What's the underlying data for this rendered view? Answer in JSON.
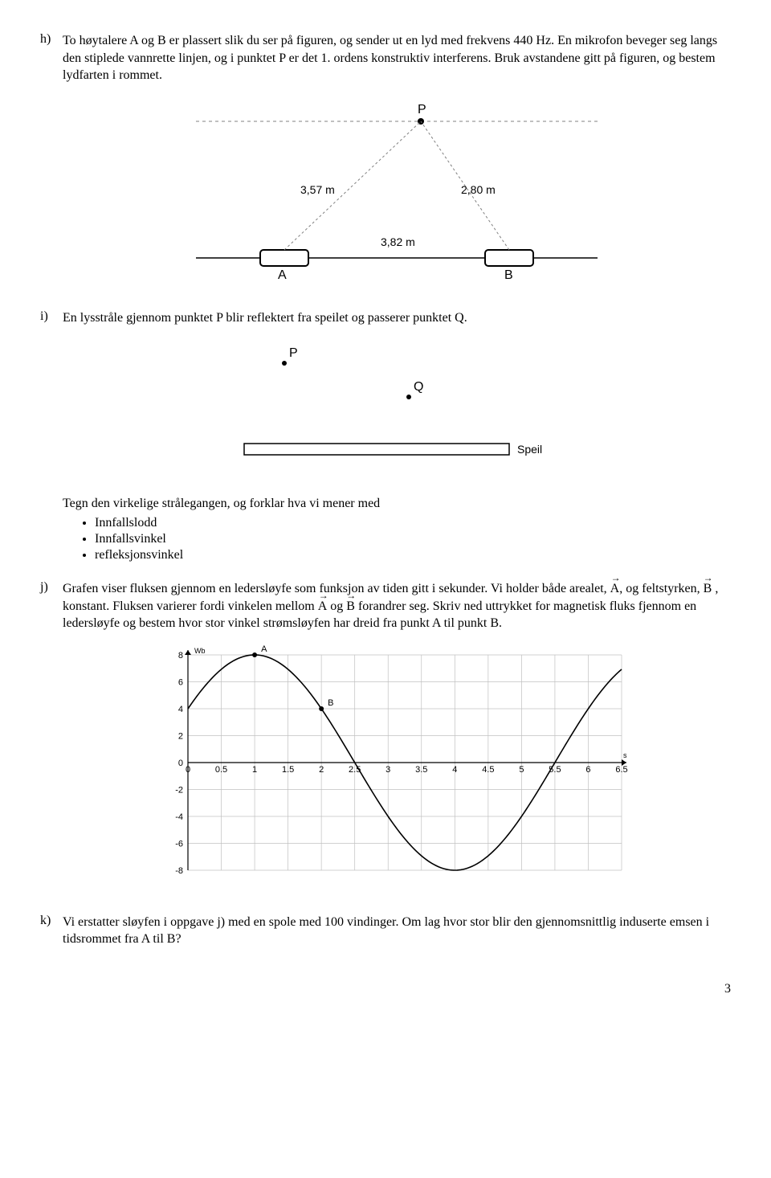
{
  "h": {
    "label": "h)",
    "text": "To høytalere A og B er plassert slik du ser på figuren, og sender ut en lyd med frekvens 440 Hz. En mikrofon beveger seg langs den stiplede vannrette linjen, og i punktet P er det 1. ordens konstruktiv interferens. Bruk avstandene gitt på figuren, og bestem lydfarten i rommet.",
    "figure": {
      "P": "P",
      "A": "A",
      "B": "B",
      "AP": "3,57 m",
      "BP": "2,80 m",
      "AB": "3,82 m",
      "line_color": "#000000",
      "dash_color": "#808080",
      "speaker_fill": "#ffffff",
      "speaker_stroke": "#000000"
    }
  },
  "i": {
    "label": "i)",
    "text": "En lysstråle gjennom punktet P blir reflektert fra speilet og passerer punktet Q.",
    "figure": {
      "P": "P",
      "Q": "Q",
      "mirror_label": "Speil",
      "mirror_fill": "#ffffff",
      "mirror_stroke": "#000000"
    },
    "after_text": "Tegn den virkelige strålegangen, og forklar hva vi mener med",
    "bullets": [
      "Innfallslodd",
      "Innfallsvinkel",
      "refleksjonsvinkel"
    ]
  },
  "j": {
    "label": "j)",
    "text_before": "Grafen viser fluksen gjennom en ledersløyfe som funksjon av tiden gitt i sekunder. Vi holder både arealet, ",
    "vecA": "A",
    "mid1": ", og feltstyrken, ",
    "vecB": "B",
    "mid2": " , konstant. Fluksen varierer fordi vinkelen mellom ",
    "vecA2": "A",
    "mid3": " og ",
    "vecB2": "B",
    "text_after": " forandrer seg. Skriv ned uttrykket for magnetisk fluks fjennom en ledersløyfe og bestem hvor stor vinkel strømsløyfen har dreid fra punkt A til punkt B.",
    "chart": {
      "type": "line",
      "y_unit": "Wb",
      "x_unit": "s",
      "xlim": [
        0,
        6.5
      ],
      "ylim": [
        -8,
        8
      ],
      "xtick_step": 0.5,
      "ytick_step": 2,
      "xticks": [
        0,
        0.5,
        1,
        1.5,
        2,
        2.5,
        3,
        3.5,
        4,
        4.5,
        5,
        5.5,
        6,
        6.5
      ],
      "yticks": [
        -8,
        -6,
        -4,
        -2,
        0,
        2,
        4,
        6,
        8
      ],
      "grid_color": "#c0c0c0",
      "axis_color": "#000000",
      "curve_color": "#000000",
      "background_color": "#ffffff",
      "amplitude": 8,
      "period": 6,
      "phase_peak_x": 1.0,
      "markers": [
        {
          "name": "A",
          "x": 1.0,
          "y": 8
        },
        {
          "name": "B",
          "x": 2.0,
          "y": 4
        }
      ],
      "marker_color": "#000000"
    }
  },
  "k": {
    "label": "k)",
    "text": "Vi erstatter sløyfen i oppgave j) med en spole med 100 vindinger. Om lag hvor stor blir den gjennomsnittlig induserte emsen i tidsrommet fra A til B?"
  },
  "page_number": "3"
}
